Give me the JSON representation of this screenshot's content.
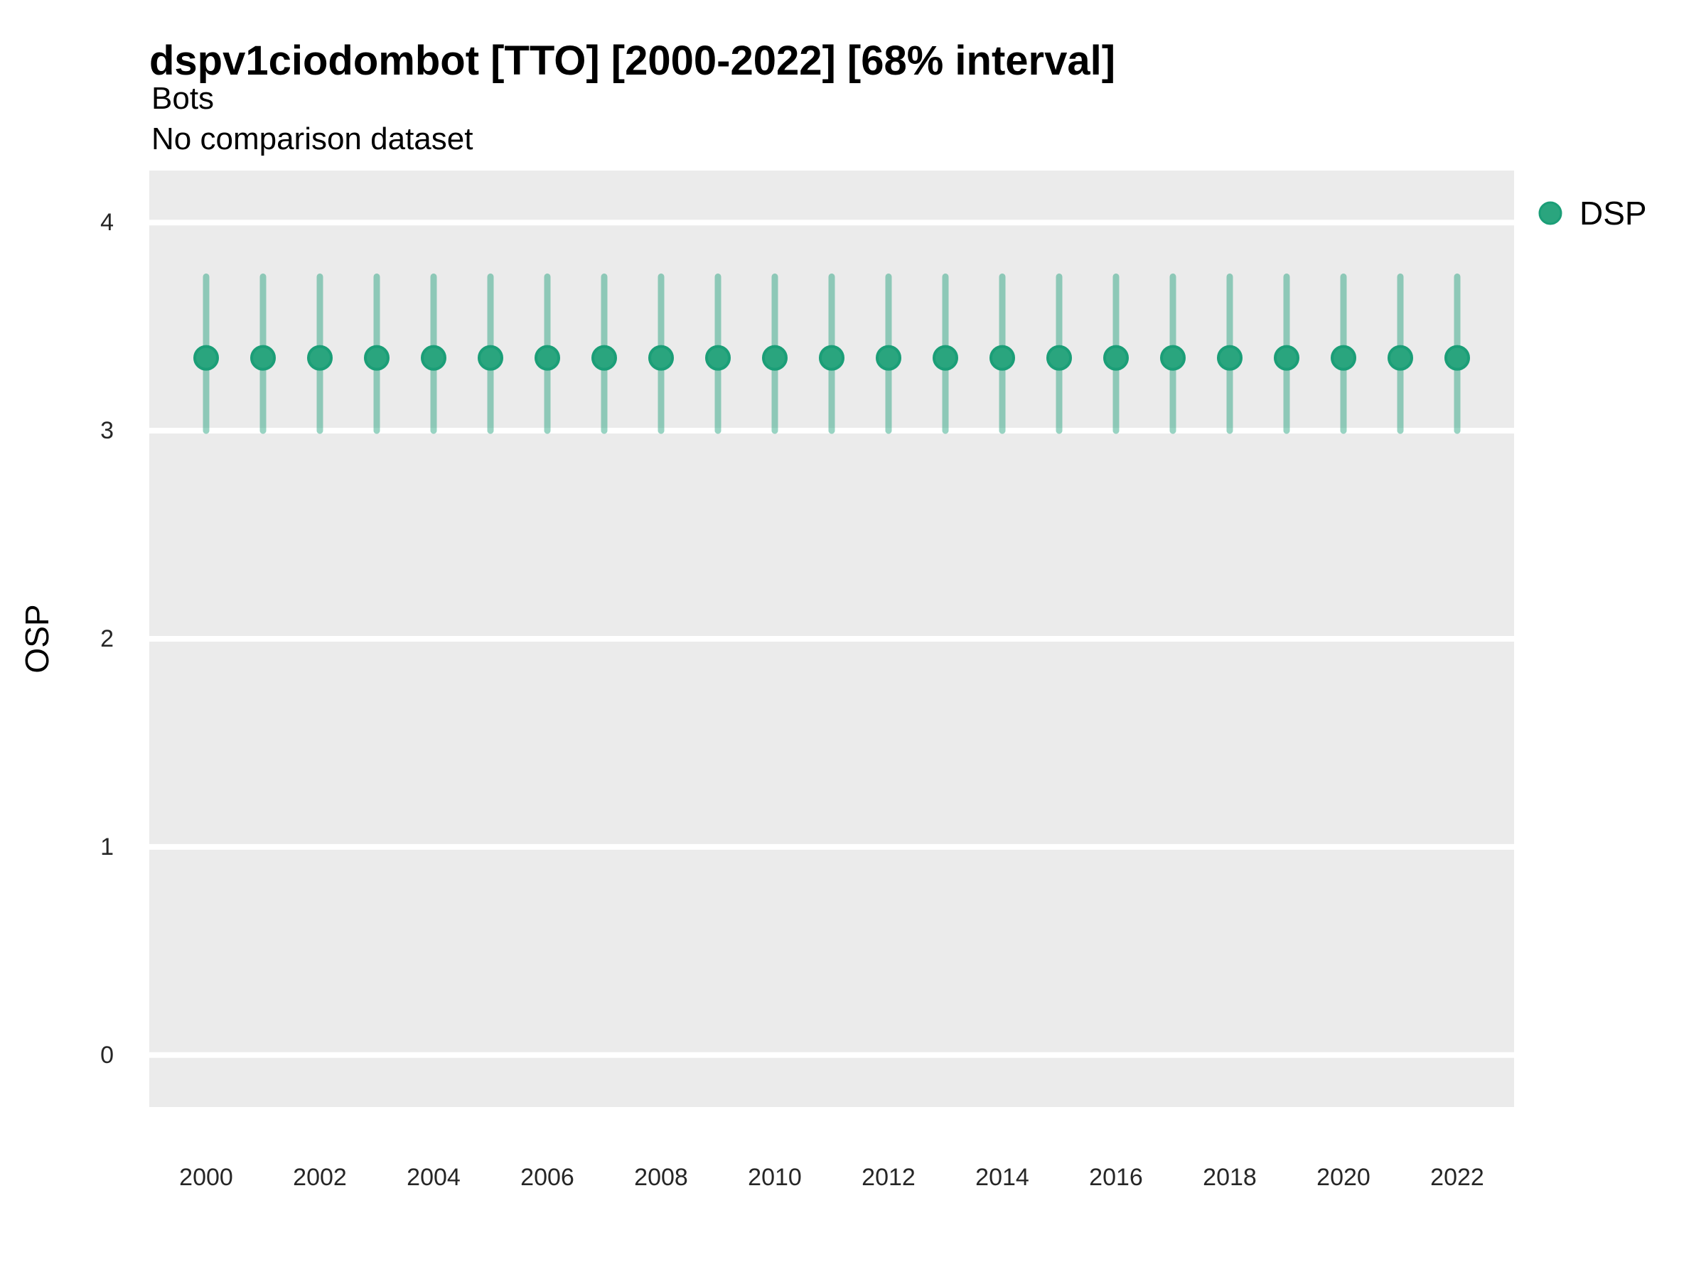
{
  "header": {
    "title": "dspv1ciodombot [TTO] [2000-2022] [68% interval]",
    "subtitle": "Bots",
    "comparison_note": "No comparison dataset"
  },
  "legend": {
    "position": "right",
    "items": [
      {
        "label": "DSP",
        "marker": "circle",
        "color": "#2aa57e"
      }
    ]
  },
  "colors": {
    "point_fill": "#2aa57e",
    "point_stroke": "#1b9e77",
    "errorbar": "rgba(27,158,119,0.45)",
    "panel_bg": "#ebebeb",
    "gridline": "#ffffff",
    "tick_text": "#262626",
    "axis_title_text": "#000000"
  },
  "chart_data": {
    "type": "scatter",
    "title": "dspv1ciodombot [TTO] [2000-2022] [68% interval]",
    "subtitle": "Bots",
    "note": "No comparison dataset",
    "interval": "68%",
    "xlabel": "",
    "ylabel": "OSP",
    "grid": "horizontal-major-only",
    "legend_position": "right",
    "ylim": [
      -0.25,
      4.25
    ],
    "yticks": [
      0,
      1,
      2,
      3,
      4
    ],
    "xticks": [
      2000,
      2002,
      2004,
      2006,
      2008,
      2010,
      2012,
      2014,
      2016,
      2018,
      2020,
      2022
    ],
    "x": [
      2000,
      2001,
      2002,
      2003,
      2004,
      2005,
      2006,
      2007,
      2008,
      2009,
      2010,
      2011,
      2012,
      2013,
      2014,
      2015,
      2016,
      2017,
      2018,
      2019,
      2020,
      2021,
      2022
    ],
    "series": [
      {
        "name": "DSP",
        "values": [
          3.35,
          3.35,
          3.35,
          3.35,
          3.35,
          3.35,
          3.35,
          3.35,
          3.35,
          3.35,
          3.35,
          3.35,
          3.35,
          3.35,
          3.35,
          3.35,
          3.35,
          3.35,
          3.35,
          3.35,
          3.35,
          3.35,
          3.35
        ],
        "lower": [
          3.0,
          3.0,
          3.0,
          3.0,
          3.0,
          3.0,
          3.0,
          3.0,
          3.0,
          3.0,
          3.0,
          3.0,
          3.0,
          3.0,
          3.0,
          3.0,
          3.0,
          3.0,
          3.0,
          3.0,
          3.0,
          3.0,
          3.0
        ],
        "upper": [
          3.74,
          3.74,
          3.74,
          3.74,
          3.74,
          3.74,
          3.74,
          3.74,
          3.74,
          3.74,
          3.74,
          3.74,
          3.74,
          3.74,
          3.74,
          3.74,
          3.74,
          3.74,
          3.74,
          3.74,
          3.74,
          3.74,
          3.74
        ]
      }
    ]
  }
}
